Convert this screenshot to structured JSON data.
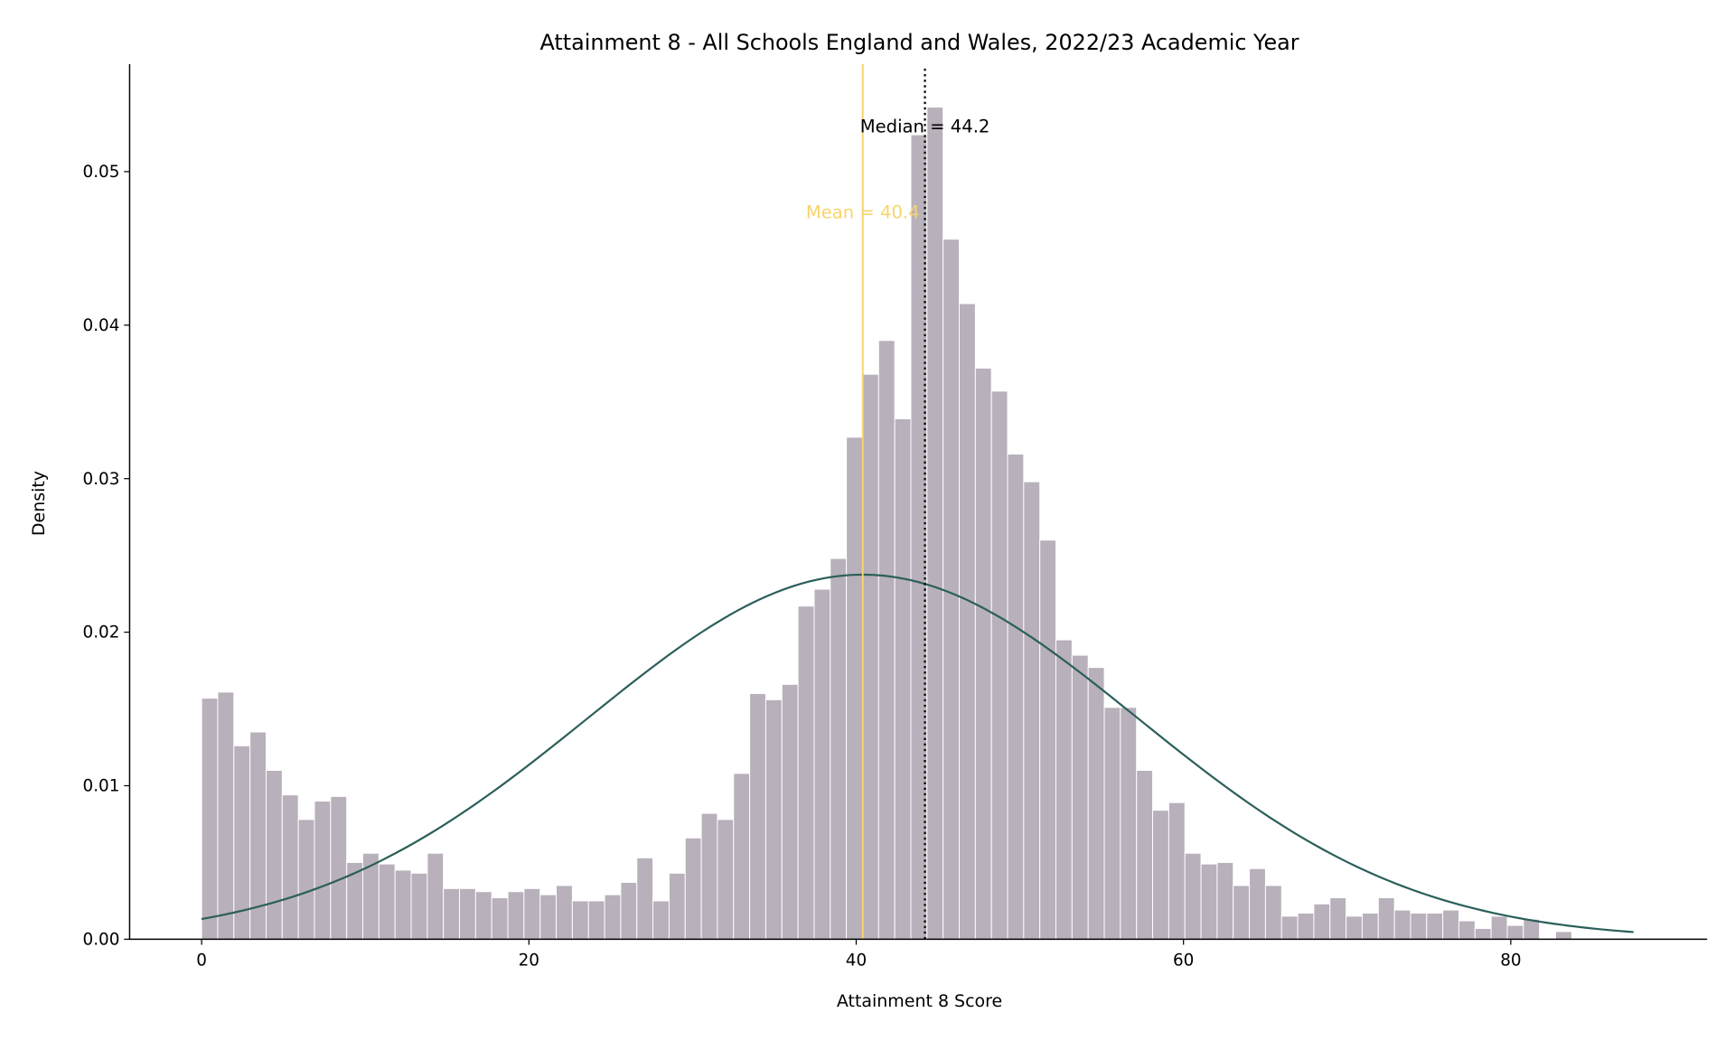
{
  "chart_data": {
    "type": "bar",
    "title": "Attainment 8 - All Schools England and Wales, 2022/23 Academic Year",
    "xlabel": "Attainment 8 Score",
    "ylabel": "Density",
    "xlim": [
      -4.4,
      92
    ],
    "ylim": [
      0,
      0.057
    ],
    "xticks": [
      0,
      20,
      40,
      60,
      80
    ],
    "xtick_labels": [
      "0",
      "20",
      "40",
      "60",
      "80"
    ],
    "yticks": [
      0,
      0.01,
      0.02,
      0.03,
      0.04,
      0.05
    ],
    "ytick_labels": [
      "0.00",
      "0.01",
      "0.02",
      "0.03",
      "0.04",
      "0.05"
    ],
    "grid": false,
    "histogram": {
      "bin_start": 0,
      "bin_width": 0.985,
      "values": [
        0.0157,
        0.0161,
        0.0126,
        0.0135,
        0.011,
        0.0094,
        0.0078,
        0.009,
        0.0093,
        0.005,
        0.0056,
        0.0049,
        0.0045,
        0.0043,
        0.0056,
        0.0033,
        0.0033,
        0.0031,
        0.0027,
        0.0031,
        0.0033,
        0.0029,
        0.0035,
        0.0025,
        0.0025,
        0.0029,
        0.0037,
        0.0053,
        0.0025,
        0.0043,
        0.0066,
        0.0082,
        0.0078,
        0.0108,
        0.016,
        0.0156,
        0.0166,
        0.0217,
        0.0228,
        0.0248,
        0.0327,
        0.0368,
        0.039,
        0.0339,
        0.0524,
        0.0542,
        0.0456,
        0.0414,
        0.0372,
        0.0357,
        0.0316,
        0.0298,
        0.026,
        0.0195,
        0.0185,
        0.0177,
        0.0151,
        0.0151,
        0.011,
        0.0084,
        0.0089,
        0.0056,
        0.0049,
        0.005,
        0.0035,
        0.0046,
        0.0035,
        0.0015,
        0.0017,
        0.0023,
        0.0027,
        0.0015,
        0.0017,
        0.0027,
        0.0019,
        0.0017,
        0.0017,
        0.0019,
        0.0012,
        0.0007,
        0.0015,
        0.0009,
        0.0013,
        0.0,
        0.0005
      ],
      "color": "#b8b0ba"
    },
    "normal_fit": {
      "mean": 40.4,
      "std": 16.8,
      "x_range": [
        0,
        87.5
      ],
      "color": "#2b5f5a"
    },
    "mean_line": {
      "value": 40.4,
      "label": "Mean = 40.4",
      "color": "#f7d56b"
    },
    "median_line": {
      "value": 44.2,
      "label": "Median = 44.2",
      "color": "#000000"
    }
  }
}
